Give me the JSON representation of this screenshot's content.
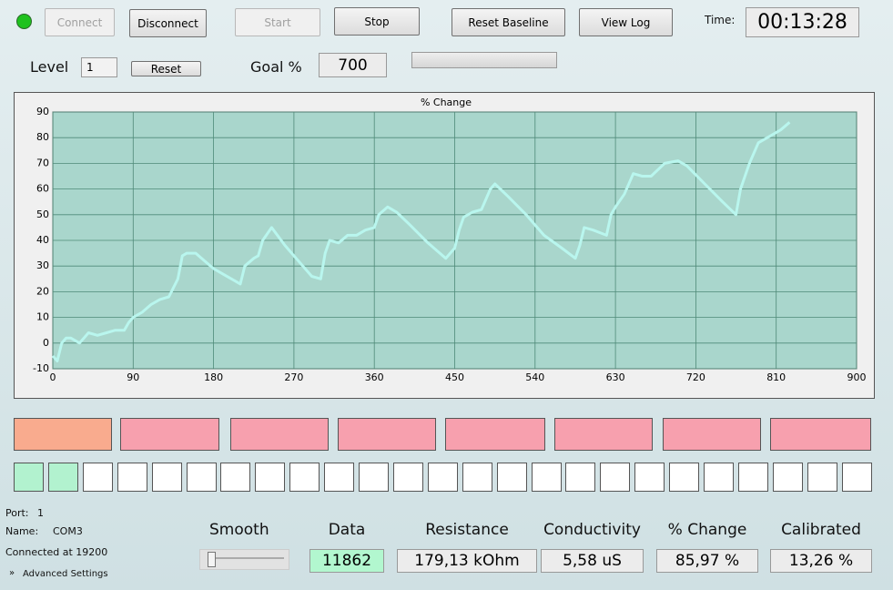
{
  "toolbar": {
    "buttons": [
      "Connect",
      "Disconnect",
      "Start",
      "Stop",
      "Reset Baseline",
      "View Log"
    ],
    "time_label": "Time:",
    "time": "00:13:28"
  },
  "level": {
    "label": "Level",
    "value": "1",
    "reset": "Reset"
  },
  "goal": {
    "label": "Goal %",
    "value": "700"
  },
  "chart_data": {
    "type": "line",
    "title": "% Change",
    "x": [
      0,
      5,
      10,
      15,
      20,
      30,
      40,
      50,
      60,
      70,
      80,
      85,
      90,
      100,
      110,
      120,
      130,
      140,
      145,
      150,
      160,
      170,
      180,
      190,
      200,
      210,
      215,
      225,
      230,
      235,
      245,
      260,
      280,
      290,
      300,
      305,
      310,
      320,
      330,
      340,
      350,
      360,
      365,
      375,
      385,
      400,
      420,
      440,
      450,
      455,
      460,
      470,
      480,
      490,
      495,
      510,
      530,
      540,
      550,
      570,
      585,
      590,
      595,
      605,
      620,
      625,
      630,
      640,
      650,
      660,
      670,
      685,
      700,
      710,
      730,
      750,
      765,
      770,
      780,
      790,
      800,
      815,
      825
    ],
    "values": [
      -5,
      -7,
      0,
      2,
      2,
      0,
      4,
      3,
      4,
      5,
      5,
      8,
      10,
      12,
      15,
      17,
      18,
      25,
      34,
      35,
      35,
      32,
      29,
      27,
      25,
      23,
      30,
      33,
      34,
      40,
      45,
      38,
      30,
      26,
      25,
      35,
      40,
      39,
      42,
      42,
      44,
      45,
      50,
      53,
      51,
      46,
      39,
      33,
      37,
      44,
      49,
      51,
      52,
      60,
      62,
      57,
      50,
      46,
      42,
      37,
      33,
      38,
      45,
      44,
      42,
      50,
      53,
      58,
      66,
      65,
      65,
      70,
      71,
      69,
      62,
      55,
      50,
      60,
      70,
      78,
      80,
      83,
      86
    ],
    "color": "#b9f6ee",
    "xlim": [
      0,
      900
    ],
    "xticks": [
      0,
      90,
      180,
      270,
      360,
      450,
      540,
      630,
      720,
      810,
      900
    ],
    "ylim": [
      -10,
      90
    ],
    "yticks": [
      -10,
      0,
      10,
      20,
      30,
      40,
      50,
      60,
      70,
      80,
      90
    ],
    "grid": true
  },
  "status": {
    "port_label": "Port:",
    "port": "1",
    "name_label": "Name:",
    "name": "COM3",
    "connection": "Connected at 19200",
    "advanced": "Advanced Settings"
  },
  "smooth_label": "Smooth",
  "readouts": [
    {
      "label": "Data",
      "value": "11862"
    },
    {
      "label": "Resistance",
      "value": "179,13 kOhm"
    },
    {
      "label": "Conductivity",
      "value": "5,58 uS"
    },
    {
      "label": "% Change",
      "value": "85,97 %"
    },
    {
      "label": "Calibrated",
      "value": "13,26 %"
    }
  ]
}
